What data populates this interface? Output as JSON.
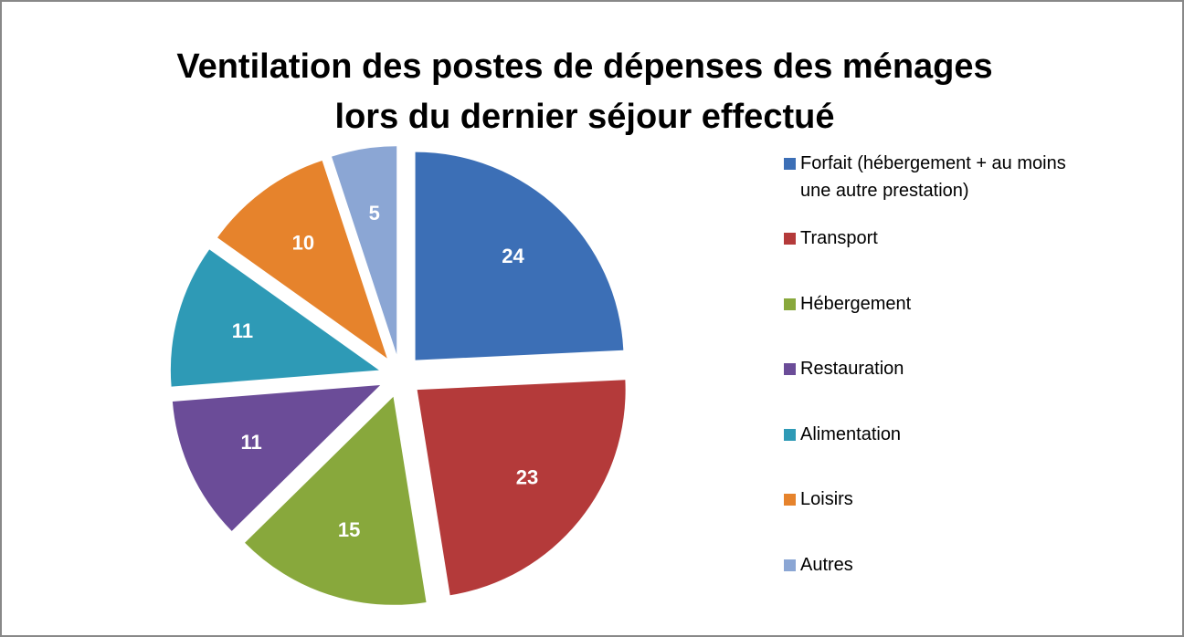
{
  "chart_data": {
    "type": "pie",
    "title": [
      "Ventilation des postes de dépenses des ménages",
      "lors du dernier séjour effectué"
    ],
    "categories": [
      "Forfait (hébergement + au moins une autre prestation)",
      "Transport",
      "Hébergement",
      "Restauration",
      "Alimentation",
      "Loisirs",
      "Autres"
    ],
    "values": [
      24,
      23,
      15,
      11,
      11,
      10,
      5
    ],
    "colors": [
      "#3c6fb6",
      "#b43a3a",
      "#88a83c",
      "#6b4c98",
      "#2e9ab6",
      "#e6832c",
      "#8ba6d4"
    ],
    "legend": "right"
  }
}
